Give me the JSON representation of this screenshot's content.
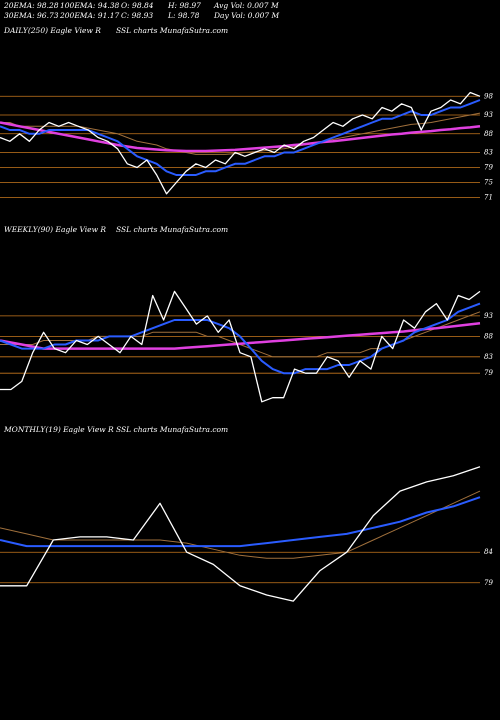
{
  "header": {
    "rows": [
      [
        "20EMA: 98.28",
        "100EMA: 94.38",
        "O: 98.84",
        "H: 98.97",
        "Avg Vol: 0.007 M"
      ],
      [
        "30EMA: 96.73",
        "200EMA: 91.17",
        "C: 98.93",
        "L: 98.78",
        "Day Vol: 0.007 M"
      ]
    ]
  },
  "chart_data": [
    {
      "type": "line",
      "title": "DAILY(250) Eagle  View  R",
      "subtitle": "SSL  charts MunafaSutra.com",
      "ylim": [
        69,
        113
      ],
      "yticks": [
        98,
        93,
        88,
        83,
        79,
        75,
        71
      ],
      "grid": true,
      "grid_color": "#c8781e",
      "categories": [
        null,
        null,
        null,
        null,
        null,
        null,
        null,
        null,
        null,
        null,
        null,
        null,
        null,
        null,
        null,
        null,
        null,
        null,
        null,
        null,
        null,
        null,
        null,
        null,
        null,
        null,
        null,
        null,
        null,
        null,
        null,
        null,
        null,
        null,
        null,
        null,
        null,
        null,
        null,
        null,
        null,
        null,
        null,
        null,
        null,
        null,
        null,
        null,
        null,
        null
      ],
      "series": [
        {
          "name": null,
          "color": "#a0703c",
          "width": 1,
          "values": [
            91,
            91,
            90,
            90,
            90,
            90,
            90,
            90,
            90,
            89.5,
            89,
            88.5,
            88,
            87,
            86,
            85.5,
            85,
            84,
            83.5,
            83,
            82.5,
            82.5,
            82.5,
            82.5,
            82.7,
            83,
            83.2,
            83.5,
            83.8,
            84,
            84.5,
            85,
            85.5,
            86,
            86.5,
            87,
            87.5,
            88,
            88.5,
            89,
            89.5,
            90,
            90.5,
            90.7,
            91,
            91.5,
            92,
            92.5,
            93,
            93.5
          ]
        },
        {
          "name": null,
          "color": "#e040e0",
          "width": 2.5,
          "values": [
            91,
            90.5,
            90,
            89.5,
            89,
            88.5,
            88,
            87.5,
            87,
            86.5,
            86,
            85.5,
            85,
            84.6,
            84.2,
            84,
            83.8,
            83.6,
            83.5,
            83.4,
            83.4,
            83.4,
            83.5,
            83.6,
            83.7,
            83.9,
            84.1,
            84.3,
            84.5,
            84.7,
            85,
            85.2,
            85.5,
            85.8,
            86,
            86.3,
            86.6,
            86.9,
            87.2,
            87.5,
            87.8,
            88,
            88.3,
            88.5,
            88.7,
            89,
            89.2,
            89.5,
            89.7,
            90
          ]
        },
        {
          "name": null,
          "color": "#2a5cff",
          "width": 2,
          "values": [
            90,
            89,
            89,
            88,
            88,
            89,
            89,
            89,
            89,
            89,
            88,
            87,
            86,
            84,
            82,
            81,
            80,
            78,
            77,
            77,
            77,
            78,
            78,
            79,
            80,
            80,
            81,
            82,
            82,
            83,
            83,
            84,
            85,
            86,
            87,
            88,
            89,
            90,
            91,
            92,
            92,
            93,
            94,
            93,
            93,
            94,
            95,
            95,
            96,
            97
          ]
        },
        {
          "name": null,
          "color": "#ffffff",
          "width": 1.3,
          "values": [
            87,
            86,
            88,
            86,
            89,
            91,
            90,
            91,
            90,
            89,
            87,
            86,
            84,
            80,
            79,
            81,
            77,
            72,
            75,
            78,
            80,
            79,
            81,
            80,
            83,
            82,
            83,
            84,
            83,
            85,
            84,
            86,
            87,
            89,
            91,
            90,
            92,
            93,
            92,
            95,
            94,
            96,
            95,
            89,
            94,
            95,
            97,
            96,
            99,
            98
          ]
        }
      ]
    },
    {
      "type": "line",
      "title": "WEEKLY(90) Eagle  View  R",
      "subtitle": "SSL  charts MunafaSutra.com",
      "ylim": [
        70,
        114
      ],
      "yticks": [
        93,
        88,
        83,
        79
      ],
      "grid": true,
      "grid_color": "#c8781e",
      "categories": [
        null,
        null,
        null,
        null,
        null,
        null,
        null,
        null,
        null,
        null,
        null,
        null,
        null,
        null,
        null,
        null,
        null,
        null,
        null,
        null,
        null,
        null,
        null,
        null,
        null,
        null,
        null,
        null,
        null,
        null,
        null,
        null,
        null,
        null,
        null,
        null,
        null,
        null,
        null,
        null,
        null,
        null,
        null,
        null,
        null
      ],
      "series": [
        {
          "name": null,
          "color": "#a0703c",
          "width": 1,
          "values": [
            86,
            86,
            86,
            86,
            87,
            87,
            87,
            87,
            87,
            88,
            88,
            88,
            88,
            88,
            89,
            89,
            89,
            89,
            89,
            88,
            88,
            87,
            86,
            85,
            84,
            83,
            83,
            83,
            83,
            83,
            84,
            84,
            84,
            84,
            85,
            85,
            86,
            87,
            88,
            89,
            90,
            91,
            92,
            93,
            94
          ]
        },
        {
          "name": null,
          "color": "#e040e0",
          "width": 2.5,
          "values": [
            87,
            86.5,
            86,
            85.5,
            85,
            85,
            85,
            85,
            85,
            85,
            85,
            85,
            85,
            85,
            85,
            85,
            85,
            85.2,
            85.4,
            85.6,
            85.8,
            86,
            86.2,
            86.4,
            86.6,
            86.8,
            87,
            87.2,
            87.4,
            87.6,
            87.8,
            88,
            88.2,
            88.4,
            88.6,
            88.8,
            89,
            89.2,
            89.5,
            89.8,
            90,
            90.3,
            90.6,
            90.9,
            91.2
          ]
        },
        {
          "name": null,
          "color": "#2a5cff",
          "width": 2,
          "values": [
            87,
            86,
            85,
            85,
            85,
            86,
            86,
            87,
            87,
            87,
            88,
            88,
            88,
            89,
            90,
            91,
            92,
            92,
            92,
            92,
            91,
            90,
            88,
            85,
            82,
            80,
            79,
            79,
            80,
            80,
            80,
            81,
            81,
            82,
            83,
            85,
            86,
            87,
            89,
            90,
            91,
            92,
            94,
            95,
            96
          ]
        },
        {
          "name": null,
          "color": "#ffffff",
          "width": 1.3,
          "values": [
            75,
            75,
            77,
            84,
            89,
            85,
            84,
            87,
            86,
            88,
            86,
            84,
            88,
            86,
            98,
            92,
            99,
            95,
            91,
            93,
            89,
            92,
            84,
            83,
            72,
            73,
            73,
            80,
            79,
            79,
            83,
            82,
            78,
            82,
            80,
            88,
            85,
            92,
            90,
            94,
            96,
            92,
            98,
            97,
            99
          ]
        }
      ]
    },
    {
      "type": "line",
      "title": "MONTHLY(19) Eagle  View  R",
      "subtitle": "SSL  charts MunafaSutra.com",
      "ylim": [
        68,
        104
      ],
      "yticks": [
        84,
        79
      ],
      "grid": true,
      "grid_color": "#c8781e",
      "categories": [
        null,
        null,
        null,
        null,
        null,
        null,
        null,
        null,
        null,
        null,
        null,
        null,
        null,
        null,
        null,
        null,
        null,
        null,
        null
      ],
      "series": [
        {
          "name": null,
          "color": "#a0703c",
          "width": 1,
          "values": [
            88,
            87,
            86,
            86,
            86,
            86,
            86,
            85.5,
            84.5,
            83.5,
            83,
            83,
            83.5,
            84,
            86,
            88,
            90,
            92,
            94
          ]
        },
        {
          "name": null,
          "color": "#2a5cff",
          "width": 2,
          "values": [
            86,
            85,
            85,
            85,
            85,
            85,
            85,
            85,
            85,
            85,
            85.5,
            86,
            86.5,
            87,
            88,
            89,
            90.5,
            91.5,
            93
          ]
        },
        {
          "name": null,
          "color": "#ffffff",
          "width": 1.3,
          "values": [
            78.5,
            78.5,
            86,
            86.5,
            86.5,
            86,
            92,
            84,
            82,
            78.5,
            77,
            76,
            81,
            84,
            90,
            94,
            95.5,
            96.5,
            98
          ]
        }
      ]
    }
  ]
}
